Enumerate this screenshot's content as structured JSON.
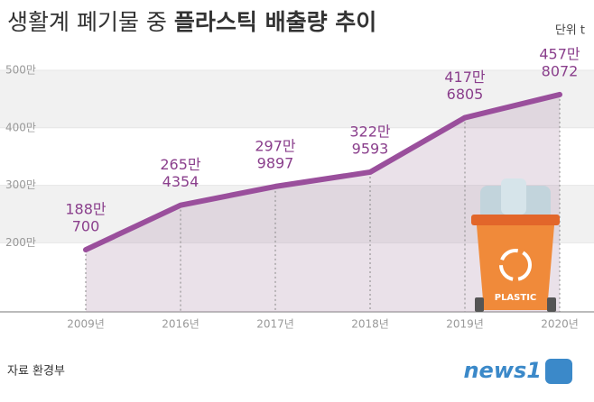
{
  "chart_data": {
    "type": "line",
    "title": [
      "생활계 폐기물 중",
      "플라스틱 배출량 추이"
    ],
    "unit": "단위 t",
    "categories": [
      "2009년",
      "2016년",
      "2017년",
      "2018년",
      "2019년",
      "2020년"
    ],
    "values": [
      1880700,
      2654354,
      2979897,
      3229593,
      4176805,
      4578072
    ],
    "value_labels": [
      [
        "188만",
        "700"
      ],
      [
        "265만",
        "4354"
      ],
      [
        "297만",
        "9897"
      ],
      [
        "322만",
        "9593"
      ],
      [
        "417만",
        "6805"
      ],
      [
        "457만",
        "8072"
      ]
    ],
    "color": "#9a4f9c",
    "ylim": [
      800000,
      5000000
    ],
    "yticks": [
      {
        "value": 2000000,
        "label": "200만"
      },
      {
        "value": 3000000,
        "label": "300만"
      },
      {
        "value": 4000000,
        "label": "400만"
      },
      {
        "value": 5000000,
        "label": "500만"
      }
    ],
    "bin_label": "PLASTIC",
    "source": "자료 환경부",
    "logo": "news1"
  }
}
